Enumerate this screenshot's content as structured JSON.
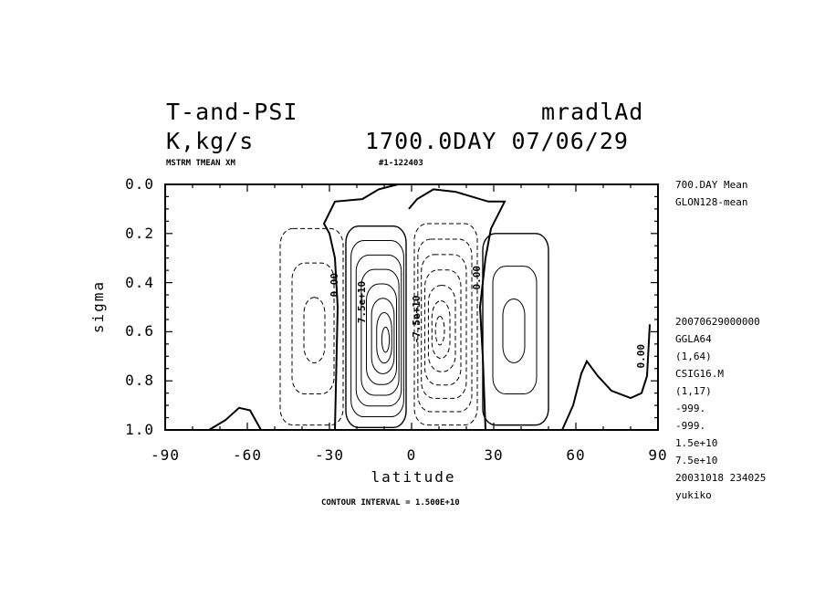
{
  "header": {
    "title_left": "T-and-PSI",
    "title_right": "mradlAd",
    "units": "K,kg/s",
    "time": "1700.0DAY 07/06/29",
    "sub_left": "MSTRM TMEAN XM",
    "sub_mid": "#1-122403"
  },
  "side_info": {
    "top": [
      "700.DAY Mean",
      "GLON128-mean"
    ],
    "bottom": [
      "20070629000000",
      "GGLA64",
      "(1,64)",
      "CSIG16.M",
      "(1,17)",
      "-999.",
      "-999.",
      "1.5e+10",
      "7.5e+10",
      "20031018 234025",
      "yukiko"
    ]
  },
  "footer": {
    "contour_interval": "CONTOUR INTERVAL = 1.500E+10"
  },
  "chart_data": {
    "type": "contour",
    "xlabel": "latitude",
    "ylabel": "sigma",
    "xlim": [
      -90,
      90
    ],
    "ylim": [
      1.0,
      0.0
    ],
    "x_ticks": [
      "-90",
      "-60",
      "-30",
      "0",
      "30",
      "60",
      "90"
    ],
    "y_ticks": [
      "0.0",
      "0.2",
      "0.4",
      "0.6",
      "0.8",
      "1.0"
    ],
    "contour_interval": 15000000000.0,
    "contour_labels": [
      "0.00",
      "7.5e+10",
      "-7.5e+10",
      "0.00",
      "0.00"
    ],
    "cells": [
      {
        "name": "SH-midlatitude cell",
        "sign": "negative",
        "lat_center": -35,
        "sigma_center": 0.6,
        "lat_range": [
          -48,
          -25
        ],
        "sigma_range": [
          0.18,
          0.98
        ],
        "levels": 3
      },
      {
        "name": "SH tropical cell",
        "sign": "positive",
        "lat_center": -9,
        "sigma_center": 0.64,
        "lat_range": [
          -24,
          -2
        ],
        "sigma_range": [
          0.17,
          0.99
        ],
        "levels": 8
      },
      {
        "name": "NH tropical cell",
        "sign": "negative",
        "lat_center": 10,
        "sigma_center": 0.6,
        "lat_range": [
          1,
          24
        ],
        "sigma_range": [
          0.16,
          0.98
        ],
        "levels": 7
      },
      {
        "name": "NH-midlatitude cell",
        "sign": "positive",
        "lat_center": 37,
        "sigma_center": 0.6,
        "lat_range": [
          26,
          50
        ],
        "sigma_range": [
          0.2,
          0.98
        ],
        "levels": 3
      }
    ],
    "zero_contour": {
      "left": [
        [
          -28,
          1.0
        ],
        [
          -27,
          0.5
        ],
        [
          -28,
          0.3
        ],
        [
          -30,
          0.2
        ],
        [
          -32,
          0.16
        ],
        [
          -28,
          0.07
        ],
        [
          -18,
          0.06
        ],
        [
          -12,
          0.02
        ],
        [
          -5,
          0.0
        ]
      ],
      "right": [
        [
          -1,
          0.1
        ],
        [
          2,
          0.06
        ],
        [
          8,
          0.02
        ],
        [
          16,
          0.03
        ],
        [
          22,
          0.05
        ],
        [
          28,
          0.07
        ],
        [
          34,
          0.07
        ],
        [
          29,
          0.18
        ],
        [
          27,
          0.3
        ],
        [
          25,
          0.5
        ],
        [
          26,
          0.7
        ],
        [
          27,
          1.0
        ]
      ],
      "sh_polar": [
        [
          -74,
          1.0
        ],
        [
          -68,
          0.96
        ],
        [
          -63,
          0.91
        ],
        [
          -59,
          0.92
        ],
        [
          -55,
          1.0
        ]
      ],
      "nh_polar": [
        [
          55,
          1.0
        ],
        [
          59,
          0.9
        ],
        [
          62,
          0.77
        ],
        [
          64,
          0.72
        ],
        [
          68,
          0.78
        ],
        [
          73,
          0.84
        ],
        [
          80,
          0.87
        ],
        [
          84,
          0.85
        ],
        [
          86,
          0.78
        ],
        [
          87,
          0.57
        ]
      ]
    }
  }
}
